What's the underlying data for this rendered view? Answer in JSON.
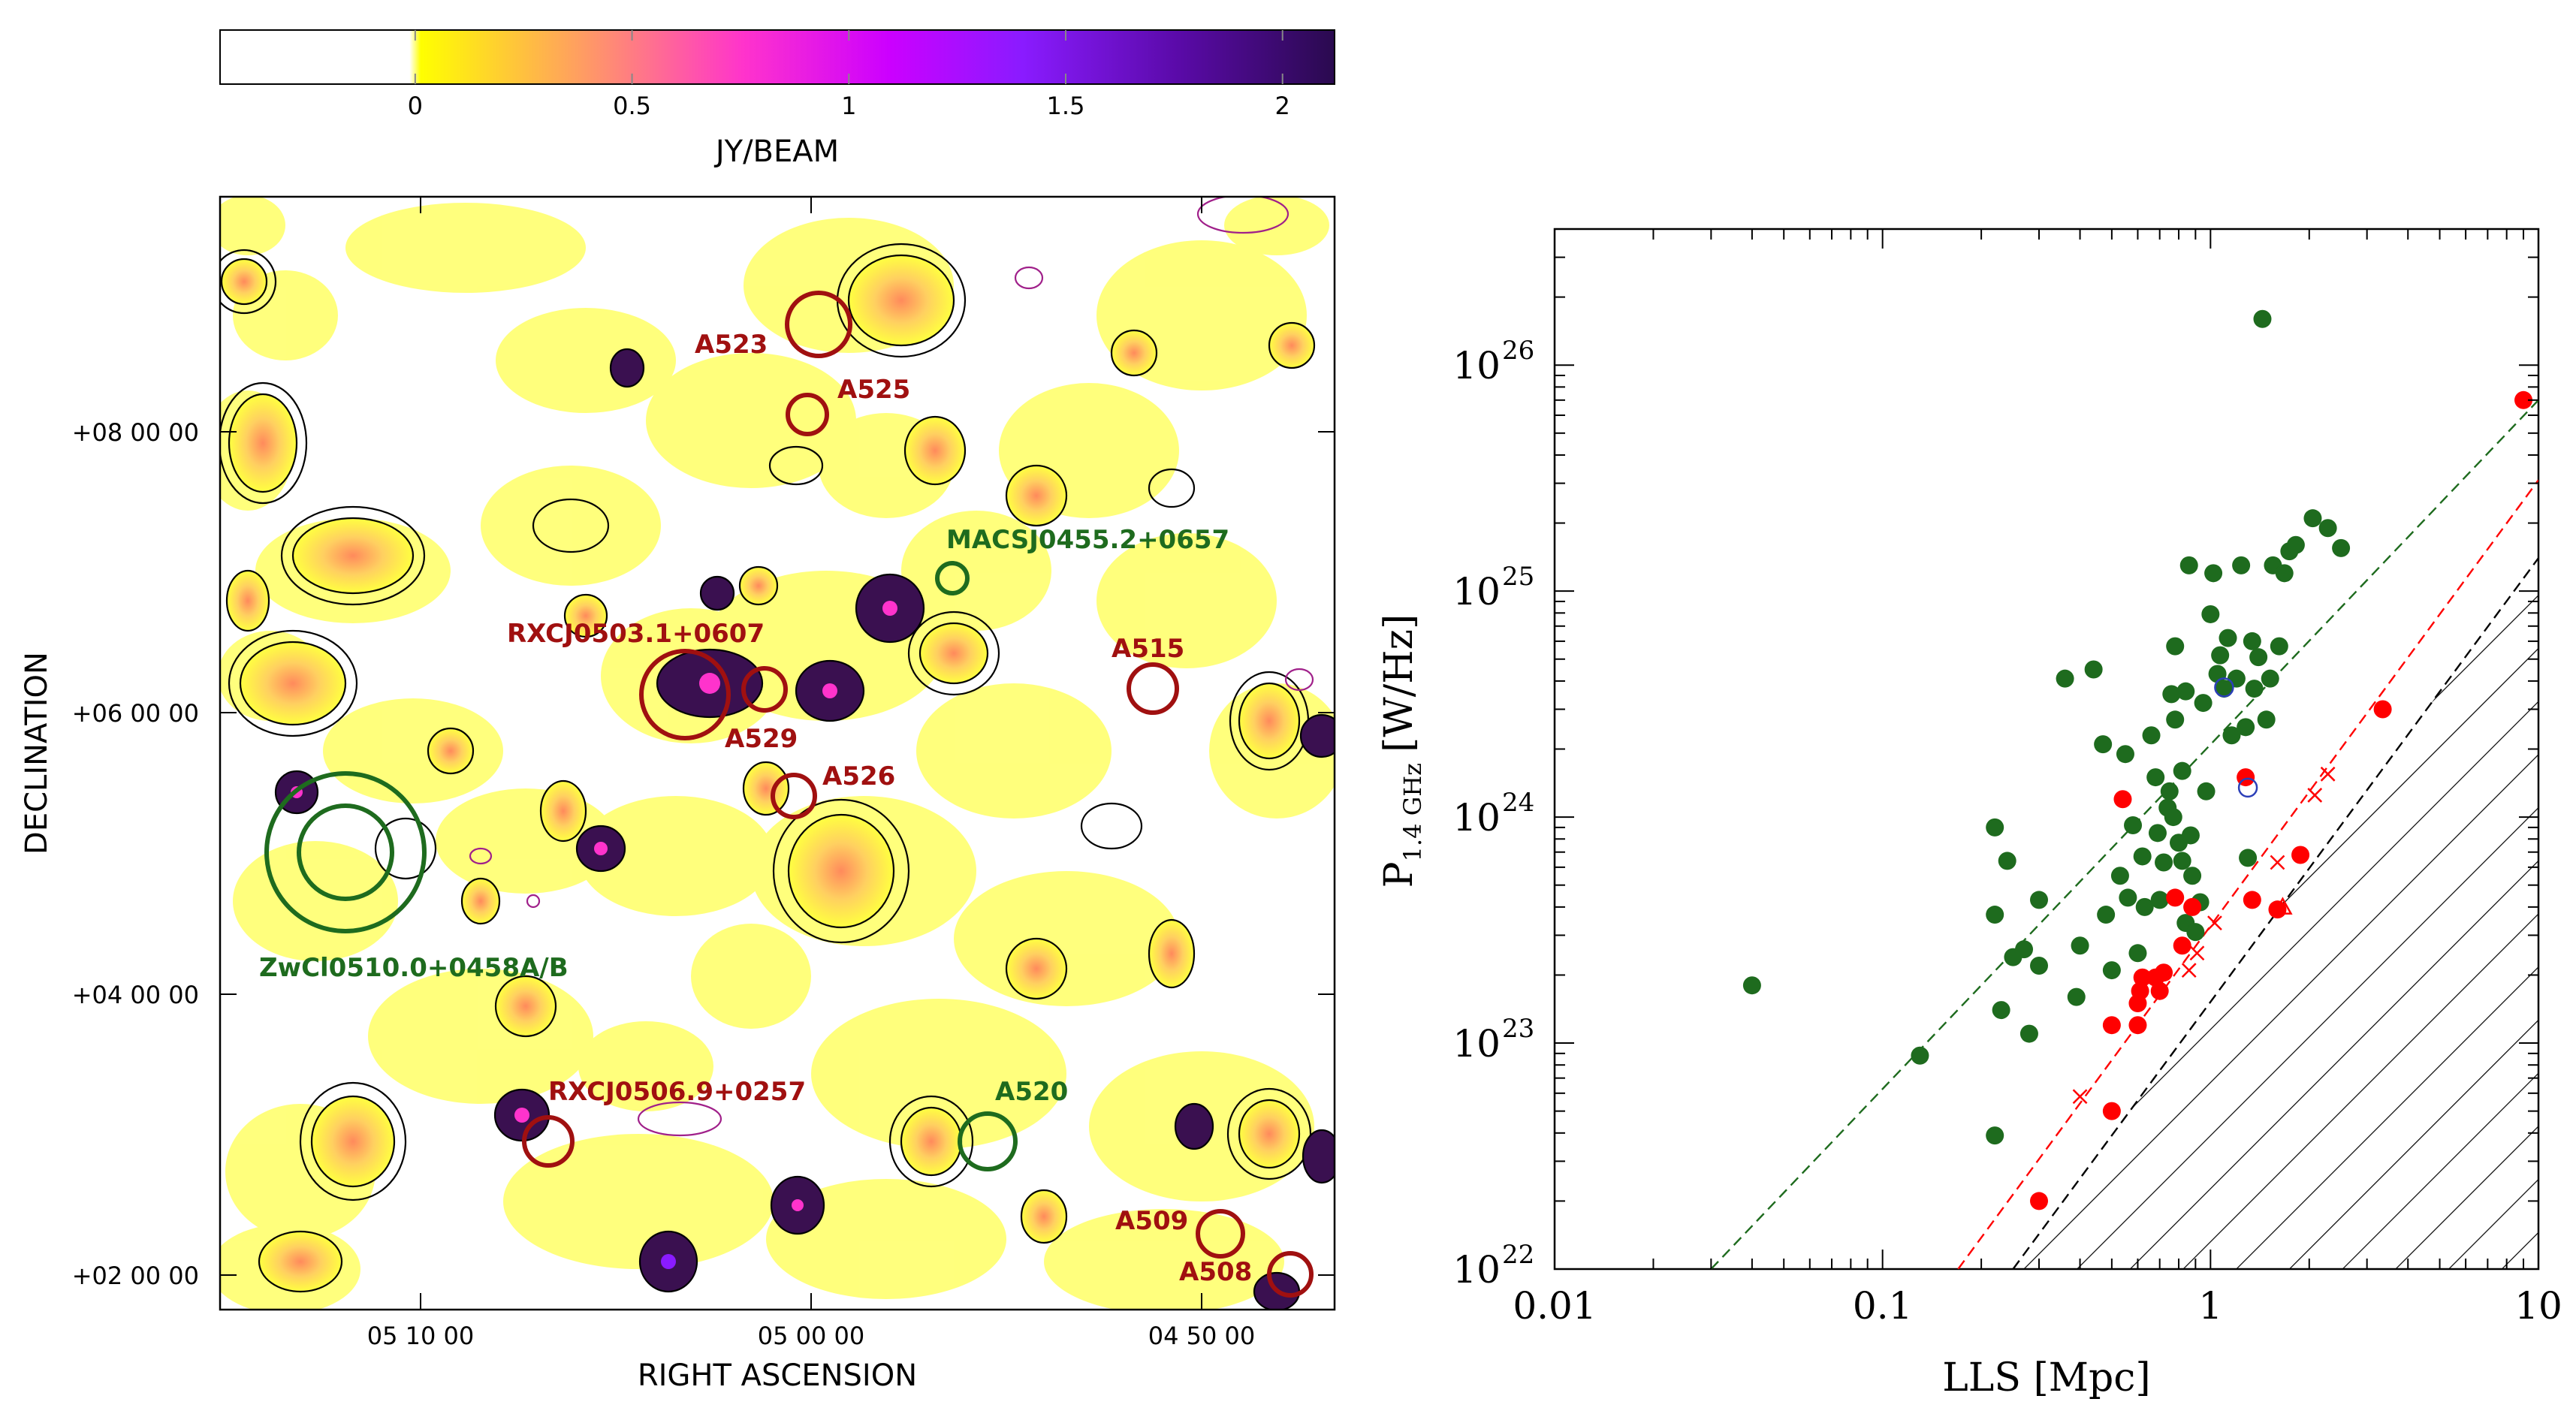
{
  "colorbar": {
    "label": "JY/BEAM",
    "ticks": [
      "0",
      "0.5",
      "1",
      "1.5",
      "2"
    ],
    "tick_values": [
      0,
      0.5,
      1,
      1.5,
      2
    ],
    "range": [
      -0.45,
      2.12
    ],
    "colormap": [
      "#ffffff",
      "#ffff00",
      "#ff9966",
      "#ff33cc",
      "#cc00ff",
      "#8a1bff",
      "#5a0aa8",
      "#2a0a4f"
    ]
  },
  "map": {
    "xlabel": "RIGHT ASCENSION",
    "ylabel": "DECLINATION",
    "ra_ticks": [
      "05 10 00",
      "05 00 00",
      "04 50 00"
    ],
    "dec_ticks": [
      "+08 00 00",
      "+06 00 00",
      "+04 00 00",
      "+02 00 00"
    ],
    "clusters": [
      {
        "name": "A523",
        "color": "#a01010"
      },
      {
        "name": "A525",
        "color": "#a01010"
      },
      {
        "name": "MACSJ0455.2+0657",
        "color": "#1e6b1e"
      },
      {
        "name": "RXCJ0503.1+0607",
        "color": "#a01010"
      },
      {
        "name": "A515",
        "color": "#a01010"
      },
      {
        "name": "A529",
        "color": "#a01010"
      },
      {
        "name": "A526",
        "color": "#a01010"
      },
      {
        "name": "ZwCl0510.0+0458A/B",
        "color": "#1e6b1e"
      },
      {
        "name": "RXCJ0506.9+0257",
        "color": "#a01010"
      },
      {
        "name": "A520",
        "color": "#1e6b1e"
      },
      {
        "name": "A509",
        "color": "#a01010"
      },
      {
        "name": "A508",
        "color": "#a01010"
      }
    ]
  },
  "chart_data": {
    "type": "scatter",
    "xlabel": "LLS [Mpc]",
    "ylabel_main": "P",
    "ylabel_sub": "1.4 GHz",
    "ylabel_unit": "[W/Hz]",
    "xscale": "log",
    "yscale": "log",
    "xlim": [
      0.01,
      10
    ],
    "ylim": [
      1e+22,
      4e+26
    ],
    "x_ticks": [
      0.01,
      0.1,
      1,
      10
    ],
    "x_tick_labels": [
      "0.01",
      "0.1",
      "1",
      "10"
    ],
    "y_ticks": [
      1e+22,
      1e+23,
      1e+24,
      1e+25,
      1e+26
    ],
    "y_tick_labels": [
      {
        "base": "10",
        "exp": "22"
      },
      {
        "base": "10",
        "exp": "23"
      },
      {
        "base": "10",
        "exp": "24"
      },
      {
        "base": "10",
        "exp": "25"
      },
      {
        "base": "10",
        "exp": "26"
      }
    ],
    "series": [
      {
        "name": "green dots",
        "color": "#1e6b1e",
        "marker": "circle",
        "points": [
          [
            0.04,
            1.8e+23
          ],
          [
            0.13,
            8.8e+22
          ],
          [
            0.22,
            3.9e+22
          ],
          [
            0.22,
            9e+23
          ],
          [
            0.22,
            3.7e+23
          ],
          [
            0.23,
            1.4e+23
          ],
          [
            0.24,
            6.4e+23
          ],
          [
            0.25,
            2.4e+23
          ],
          [
            0.27,
            2.6e+23
          ],
          [
            0.28,
            1.1e+23
          ],
          [
            0.3,
            2.2e+23
          ],
          [
            0.3,
            4.3e+23
          ],
          [
            0.36,
            4.1e+24
          ],
          [
            0.39,
            1.6e+23
          ],
          [
            0.4,
            2.7e+23
          ],
          [
            0.44,
            4.5e+24
          ],
          [
            0.47,
            2.1e+24
          ],
          [
            0.48,
            3.7e+23
          ],
          [
            0.5,
            2.1e+23
          ],
          [
            0.53,
            5.5e+23
          ],
          [
            0.55,
            1.9e+24
          ],
          [
            0.56,
            4.4e+23
          ],
          [
            0.58,
            9.2e+23
          ],
          [
            0.6,
            2.5e+23
          ],
          [
            0.62,
            6.7e+23
          ],
          [
            0.63,
            4e+23
          ],
          [
            0.66,
            2.3e+24
          ],
          [
            0.68,
            1.5e+24
          ],
          [
            0.69,
            8.5e+23
          ],
          [
            0.7,
            4.3e+23
          ],
          [
            0.72,
            6.3e+23
          ],
          [
            0.74,
            1.1e+24
          ],
          [
            0.75,
            1.3e+24
          ],
          [
            0.76,
            3.5e+24
          ],
          [
            0.77,
            1e+24
          ],
          [
            0.78,
            5.7e+24
          ],
          [
            0.78,
            2.7e+24
          ],
          [
            0.8,
            7.7e+23
          ],
          [
            0.82,
            1.6e+24
          ],
          [
            0.82,
            6.4e+23
          ],
          [
            0.84,
            3.4e+23
          ],
          [
            0.84,
            3.6e+24
          ],
          [
            0.86,
            1.3e+25
          ],
          [
            0.87,
            8.3e+23
          ],
          [
            0.88,
            5.5e+23
          ],
          [
            0.9,
            3.1e+23
          ],
          [
            0.93,
            4.2e+23
          ],
          [
            0.95,
            3.2e+24
          ],
          [
            0.97,
            1.3e+24
          ],
          [
            1.0,
            7.9e+24
          ],
          [
            1.02,
            1.2e+25
          ],
          [
            1.05,
            4.3e+24
          ],
          [
            1.07,
            5.2e+24
          ],
          [
            1.1,
            3.7e+24
          ],
          [
            1.13,
            6.2e+24
          ],
          [
            1.16,
            2.3e+24
          ],
          [
            1.2,
            4.1e+24
          ],
          [
            1.24,
            1.3e+25
          ],
          [
            1.28,
            2.5e+24
          ],
          [
            1.3,
            6.6e+23
          ],
          [
            1.34,
            6e+24
          ],
          [
            1.36,
            3.7e+24
          ],
          [
            1.4,
            5.1e+24
          ],
          [
            1.44,
            1.6e+26
          ],
          [
            1.48,
            2.7e+24
          ],
          [
            1.52,
            4.1e+24
          ],
          [
            1.55,
            1.3e+25
          ],
          [
            1.62,
            5.7e+24
          ],
          [
            1.68,
            1.2e+25
          ],
          [
            1.74,
            1.5e+25
          ],
          [
            1.82,
            1.6e+25
          ],
          [
            2.05,
            2.1e+25
          ],
          [
            2.28,
            1.9e+25
          ],
          [
            2.5,
            1.55e+25
          ]
        ]
      },
      {
        "name": "red dots",
        "color": "#ff0000",
        "marker": "circle",
        "points": [
          [
            0.3,
            2e+22
          ],
          [
            0.5,
            1.2e+23
          ],
          [
            0.5,
            5e+22
          ],
          [
            0.54,
            1.2e+24
          ],
          [
            0.6,
            1.2e+23
          ],
          [
            0.6,
            1.5e+23
          ],
          [
            0.61,
            1.7e+23
          ],
          [
            0.62,
            1.95e+23
          ],
          [
            0.68,
            1.95e+23
          ],
          [
            0.7,
            1.7e+23
          ],
          [
            0.72,
            2.05e+23
          ],
          [
            0.78,
            4.4e+23
          ],
          [
            0.82,
            2.7e+23
          ],
          [
            0.88,
            4e+23
          ],
          [
            1.28,
            1.5e+24
          ],
          [
            1.34,
            4.3e+23
          ],
          [
            1.6,
            3.9e+23
          ],
          [
            1.88,
            6.8e+23
          ],
          [
            3.35,
            3e+24
          ],
          [
            9.0,
            7e+25
          ]
        ]
      },
      {
        "name": "red crosses",
        "color": "#ff0000",
        "marker": "x",
        "points": [
          [
            0.4,
            5.8e+22
          ],
          [
            0.86,
            2.1e+23
          ],
          [
            0.91,
            2.5e+23
          ],
          [
            1.03,
            3.4e+23
          ],
          [
            1.6,
            6.3e+23
          ],
          [
            2.08,
            1.25e+24
          ],
          [
            2.28,
            1.55e+24
          ]
        ]
      },
      {
        "name": "red triangles",
        "color": "#ff0000",
        "marker": "triangle",
        "points": [
          [
            1.66,
            4e+23
          ]
        ]
      },
      {
        "name": "blue circles",
        "color": "#2b3fb8",
        "marker": "open-circle",
        "points": [
          [
            1.1,
            3.75e+24
          ],
          [
            1.3,
            1.35e+24
          ]
        ]
      }
    ],
    "lines": [
      {
        "name": "green dashed",
        "color": "#1e6b1e",
        "style": "dashed",
        "points": [
          [
            0.03,
            1e+22
          ],
          [
            10,
            7e+25
          ]
        ]
      },
      {
        "name": "red dashed",
        "color": "#ff0000",
        "style": "dashed",
        "points": [
          [
            0.17,
            1e+22
          ],
          [
            10,
            3.1e+25
          ]
        ]
      },
      {
        "name": "black dashed",
        "color": "#000000",
        "style": "dashed",
        "points": [
          [
            0.25,
            1e+22
          ],
          [
            10,
            1.4e+25
          ]
        ]
      }
    ],
    "shaded_region": "hatched area below black dashed line"
  }
}
